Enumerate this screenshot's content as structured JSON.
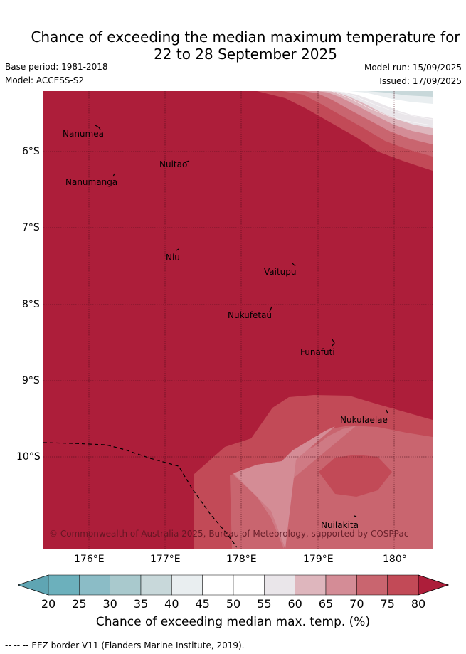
{
  "header": {
    "title_line1": "Chance of exceeding the median maximum temperature for",
    "title_line2": "22 to 28 September 2025",
    "base_period": "Base period: 1981-2018",
    "model": "Model: ACCESS-S2",
    "model_run": "Model run: 15/09/2025",
    "issued": "Issued: 17/09/2025"
  },
  "map": {
    "lat_labels": [
      "6°S",
      "7°S",
      "8°S",
      "9°S",
      "10°S"
    ],
    "lon_labels": [
      "176°E",
      "177°E",
      "178°E",
      "179°E",
      "180°"
    ],
    "places": [
      {
        "name": "Nanumea"
      },
      {
        "name": "Nuitao"
      },
      {
        "name": "Nanumanga"
      },
      {
        "name": "Niu"
      },
      {
        "name": "Vaitupu"
      },
      {
        "name": "Nukufetau"
      },
      {
        "name": "Funafuti"
      },
      {
        "name": "Nukulaelae"
      },
      {
        "name": "Nuilakita"
      }
    ],
    "copyright": "© Commonwealth of Australia 2025, Bureau of Meteorology, supported by COSPPac"
  },
  "colorbar": {
    "title": "Chance of exceeding median max. temp. (%)",
    "ticks": [
      "20",
      "25",
      "30",
      "35",
      "40",
      "45",
      "50",
      "55",
      "60",
      "65",
      "70",
      "75",
      "80"
    ],
    "colors": [
      "#5fa5b3",
      "#6cb0bc",
      "#8bbcc6",
      "#a9c9cd",
      "#c8d8da",
      "#e9eef0",
      "#ffffff",
      "#ffffff",
      "#eae6ea",
      "#deb6bd",
      "#d48c96",
      "#c9656f",
      "#c24a57",
      "#ad1e3a"
    ]
  },
  "footnote": "-- -- -- EEZ border V11 (Flanders Marine Institute, 2019)."
}
